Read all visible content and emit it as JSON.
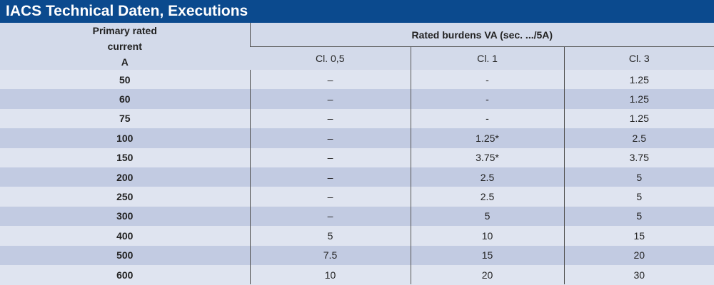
{
  "header": {
    "title": "IACS Technical Daten, Executions"
  },
  "table": {
    "primary_header": [
      "Primary rated",
      "current",
      "A"
    ],
    "group_header": "Rated burdens VA  (sec. .../5A)",
    "columns": [
      "Cl. 0,5",
      "Cl. 1",
      "Cl. 3"
    ],
    "rows": [
      [
        "50",
        "–",
        "-",
        "1.25"
      ],
      [
        "60",
        "–",
        "-",
        "1.25"
      ],
      [
        "75",
        "–",
        "-",
        "1.25"
      ],
      [
        "100",
        "–",
        "1.25*",
        "2.5"
      ],
      [
        "150",
        "–",
        "3.75*",
        "3.75"
      ],
      [
        "200",
        "–",
        "2.5",
        "5"
      ],
      [
        "250",
        "–",
        "2.5",
        "5"
      ],
      [
        "300",
        "–",
        "5",
        "5"
      ],
      [
        "400",
        "5",
        "10",
        "15"
      ],
      [
        "500",
        "7.5",
        "15",
        "20"
      ],
      [
        "600",
        "10",
        "20",
        "30"
      ]
    ]
  }
}
